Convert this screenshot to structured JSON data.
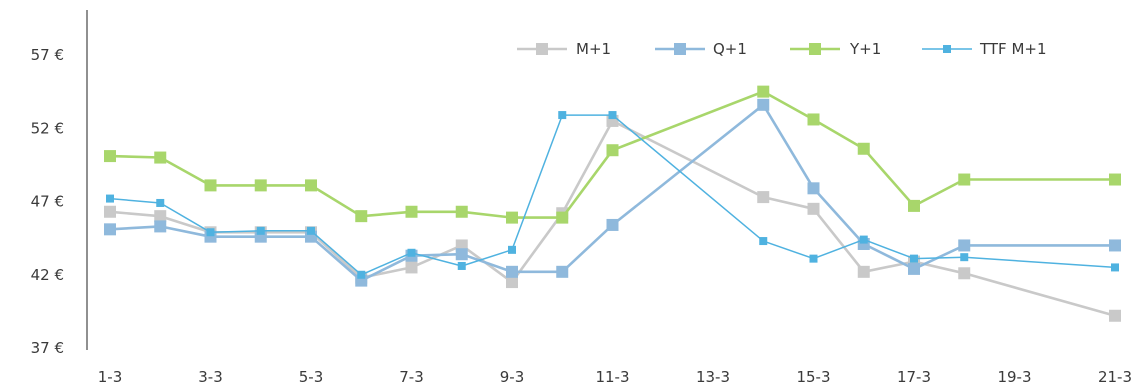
{
  "chart_data": {
    "type": "line",
    "title": "",
    "xlabel": "",
    "ylabel": "",
    "ylim": [
      37,
      58
    ],
    "y_ticks": [
      37,
      42,
      47,
      52,
      57
    ],
    "y_tick_labels": [
      "37 €",
      "42 €",
      "47 €",
      "52 €",
      "57 €"
    ],
    "x_tick_labels": [
      "1-3",
      "3-3",
      "5-3",
      "7-3",
      "9-3",
      "11-3",
      "13-3",
      "15-3",
      "17-3",
      "19-3",
      "21-3"
    ],
    "legend_position": "top-right",
    "grid": false,
    "series": [
      {
        "name": "M+1",
        "color": "#c9c9c9",
        "marker": "square-large",
        "points": [
          {
            "x": 1,
            "y": 46.3
          },
          {
            "x": 2,
            "y": 46.0
          },
          {
            "x": 3,
            "y": 44.9
          },
          {
            "x": 4,
            "y": 44.9
          },
          {
            "x": 5,
            "y": 44.9
          },
          {
            "x": 6,
            "y": 41.8
          },
          {
            "x": 7,
            "y": 42.5
          },
          {
            "x": 8,
            "y": 44.0
          },
          {
            "x": 9,
            "y": 41.5
          },
          {
            "x": 10,
            "y": 46.2
          },
          {
            "x": 11,
            "y": 52.5
          },
          {
            "x": 14,
            "y": 47.3
          },
          {
            "x": 15,
            "y": 46.5
          },
          {
            "x": 16,
            "y": 42.2
          },
          {
            "x": 17,
            "y": 42.9
          },
          {
            "x": 18,
            "y": 42.1
          },
          {
            "x": 21,
            "y": 39.2
          }
        ]
      },
      {
        "name": "Q+1",
        "color": "#8fb9dc",
        "marker": "square-large",
        "points": [
          {
            "x": 1,
            "y": 45.1
          },
          {
            "x": 2,
            "y": 45.3
          },
          {
            "x": 3,
            "y": 44.6
          },
          {
            "x": 4,
            "y": 44.6
          },
          {
            "x": 5,
            "y": 44.6
          },
          {
            "x": 6,
            "y": 41.6
          },
          {
            "x": 7,
            "y": 43.3
          },
          {
            "x": 8,
            "y": 43.4
          },
          {
            "x": 9,
            "y": 42.2
          },
          {
            "x": 10,
            "y": 42.2
          },
          {
            "x": 11,
            "y": 45.4
          },
          {
            "x": 14,
            "y": 53.6
          },
          {
            "x": 15,
            "y": 47.9
          },
          {
            "x": 16,
            "y": 44.1
          },
          {
            "x": 17,
            "y": 42.4
          },
          {
            "x": 18,
            "y": 44.0
          },
          {
            "x": 21,
            "y": 44.0
          }
        ]
      },
      {
        "name": "Y+1",
        "color": "#a8d66b",
        "marker": "square-large",
        "points": [
          {
            "x": 1,
            "y": 50.1
          },
          {
            "x": 2,
            "y": 50.0
          },
          {
            "x": 3,
            "y": 48.1
          },
          {
            "x": 4,
            "y": 48.1
          },
          {
            "x": 5,
            "y": 48.1
          },
          {
            "x": 6,
            "y": 46.0
          },
          {
            "x": 7,
            "y": 46.3
          },
          {
            "x": 8,
            "y": 46.3
          },
          {
            "x": 9,
            "y": 45.9
          },
          {
            "x": 10,
            "y": 45.9
          },
          {
            "x": 11,
            "y": 50.5
          },
          {
            "x": 14,
            "y": 54.5
          },
          {
            "x": 15,
            "y": 52.6
          },
          {
            "x": 16,
            "y": 50.6
          },
          {
            "x": 17,
            "y": 46.7
          },
          {
            "x": 18,
            "y": 48.5
          },
          {
            "x": 21,
            "y": 48.5
          }
        ]
      },
      {
        "name": "TTF M+1",
        "color": "#4fb2e0",
        "marker": "square-small",
        "points": [
          {
            "x": 1,
            "y": 47.2
          },
          {
            "x": 2,
            "y": 46.9
          },
          {
            "x": 3,
            "y": 44.9
          },
          {
            "x": 4,
            "y": 45.0
          },
          {
            "x": 5,
            "y": 45.0
          },
          {
            "x": 6,
            "y": 42.0
          },
          {
            "x": 7,
            "y": 43.5
          },
          {
            "x": 8,
            "y": 42.6
          },
          {
            "x": 9,
            "y": 43.7
          },
          {
            "x": 10,
            "y": 52.9
          },
          {
            "x": 11,
            "y": 52.9
          },
          {
            "x": 14,
            "y": 44.3
          },
          {
            "x": 15,
            "y": 43.1
          },
          {
            "x": 16,
            "y": 44.4
          },
          {
            "x": 17,
            "y": 43.1
          },
          {
            "x": 18,
            "y": 43.2
          },
          {
            "x": 21,
            "y": 42.5
          }
        ]
      }
    ]
  }
}
